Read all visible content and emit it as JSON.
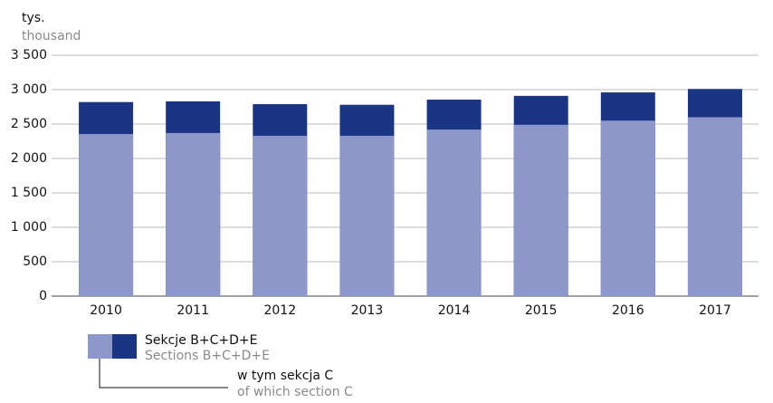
{
  "chart_data": {
    "type": "bar",
    "y_label": "tys.",
    "y_label_en": "thousand",
    "categories": [
      "2010",
      "2011",
      "2012",
      "2013",
      "2014",
      "2015",
      "2016",
      "2017"
    ],
    "series": [
      {
        "name": "Sekcje B+C+D+E",
        "name_en": "Sections B+C+D+E",
        "color": "#1b3585",
        "values": [
          2820,
          2830,
          2790,
          2780,
          2855,
          2910,
          2960,
          3010
        ]
      },
      {
        "name": "w tym sekcja C",
        "name_en": "of which section C",
        "color": "#8e97c9",
        "values": [
          2355,
          2370,
          2330,
          2330,
          2420,
          2490,
          2550,
          2600
        ]
      }
    ],
    "ylim": [
      0,
      3500
    ],
    "yticks": [
      0,
      500,
      {
        "value": 1000,
        "label": "1 000"
      },
      {
        "value": 1500,
        "label": "1 500"
      },
      {
        "value": 2000,
        "label": "2 000"
      },
      {
        "value": 2500,
        "label": "2 500"
      },
      {
        "value": 3000,
        "label": "3 000"
      },
      {
        "value": 3500,
        "label": "3 500"
      }
    ],
    "grid": true
  }
}
